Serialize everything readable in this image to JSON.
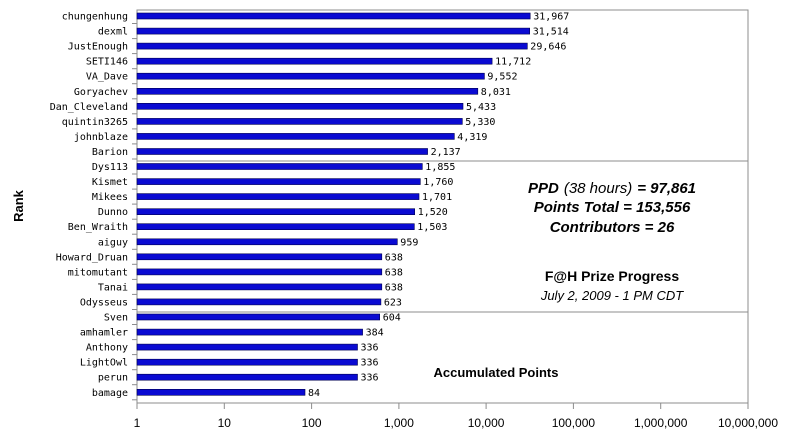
{
  "chart_data": {
    "type": "bar",
    "orientation": "horizontal",
    "x_scale": "log",
    "xlim": [
      1,
      10000000
    ],
    "x_ticks": [
      "1",
      "10",
      "100",
      "1,000",
      "10,000",
      "100,000",
      "1,000,000",
      "10,000,000"
    ],
    "xlabel": "Accumulated Points",
    "ylabel": "Rank",
    "grid": "horizontal lines after ranks 10 and 20",
    "categories": [
      "chungenhung",
      "dexml",
      "JustEnough",
      "SETI146",
      "VA_Dave",
      "Goryachev",
      "Dan_Cleveland",
      "quintin3265",
      "johnblaze",
      "Barion",
      "Dys113",
      "Kismet",
      "Mikees",
      "Dunno",
      "Ben_Wraith",
      "aiguy",
      "Howard_Druan",
      "mitomutant",
      "Tanai",
      "Odysseus",
      "Sven",
      "amhamler",
      "Anthony",
      "LightOwl",
      "perun",
      "bamage"
    ],
    "values": [
      31967,
      31514,
      29646,
      11712,
      9552,
      8031,
      5433,
      5330,
      4319,
      2137,
      1855,
      1760,
      1701,
      1520,
      1503,
      959,
      638,
      638,
      638,
      623,
      604,
      384,
      336,
      336,
      336,
      84
    ],
    "value_labels": [
      "31,967",
      "31,514",
      "29,646",
      "11,712",
      "9,552",
      "8,031",
      "5,433",
      "5,330",
      "4,319",
      "2,137",
      "1,855",
      "1,760",
      "1,701",
      "1,520",
      "1,503",
      "959",
      "638",
      "638",
      "638",
      "623",
      "604",
      "384",
      "336",
      "336",
      "336",
      "84"
    ],
    "bar_color": "#0a0ad2",
    "annotations": {
      "ppd_label": "PPD",
      "ppd_hours": "(38 hours)",
      "ppd_value": "= 97,861",
      "points_total": "Points Total = 153,556",
      "contributors": "Contributors = 26",
      "prize_title": "F@H Prize Progress",
      "prize_date": "July 2, 2009 - 1 PM CDT"
    }
  }
}
